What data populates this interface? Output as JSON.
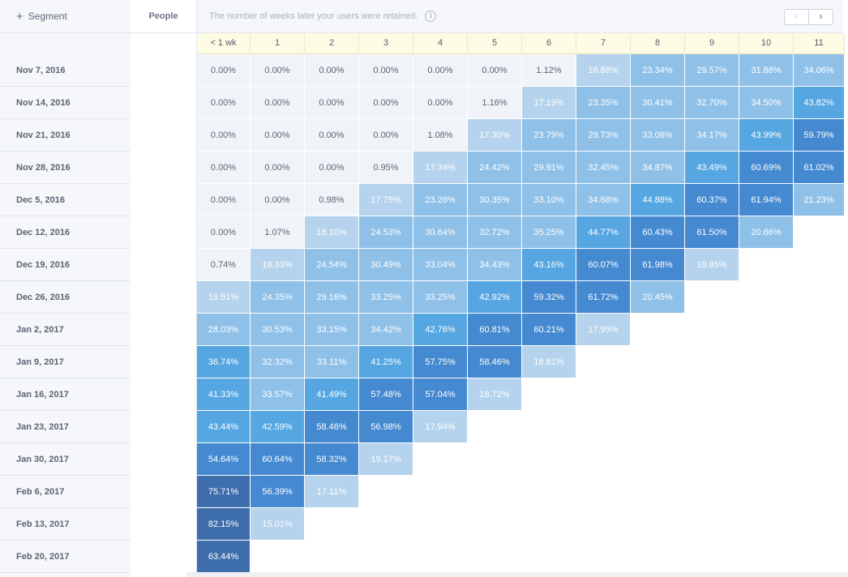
{
  "segment_button": {
    "plus": "+",
    "label": "Segment"
  },
  "people_header": "People",
  "retention_note": "The number of weeks later your users were retained.",
  "info_glyph": "i",
  "pager": {
    "prev": "‹",
    "next": "›"
  },
  "columns": [
    "< 1 wk",
    "1",
    "2",
    "3",
    "4",
    "5",
    "6",
    "7",
    "8",
    "9",
    "10",
    "11"
  ],
  "rows": [
    {
      "date": "Nov 7, 2016",
      "values": [
        "0.00%",
        "0.00%",
        "0.00%",
        "0.00%",
        "0.00%",
        "0.00%",
        "1.12%",
        "16.88%",
        "23.34%",
        "29.57%",
        "31.88%",
        "34.06%"
      ]
    },
    {
      "date": "Nov 14, 2016",
      "values": [
        "0.00%",
        "0.00%",
        "0.00%",
        "0.00%",
        "0.00%",
        "1.16%",
        "17.19%",
        "23.35%",
        "30.41%",
        "32.70%",
        "34.50%",
        "43.82%"
      ]
    },
    {
      "date": "Nov 21, 2016",
      "values": [
        "0.00%",
        "0.00%",
        "0.00%",
        "0.00%",
        "1.08%",
        "17.30%",
        "23.79%",
        "29.73%",
        "33.06%",
        "34.17%",
        "43.99%",
        "59.79%"
      ]
    },
    {
      "date": "Nov 28, 2016",
      "values": [
        "0.00%",
        "0.00%",
        "0.00%",
        "0.95%",
        "17.34%",
        "24.42%",
        "29.91%",
        "32.45%",
        "34.87%",
        "43.49%",
        "60.69%",
        "61.02%"
      ]
    },
    {
      "date": "Dec 5, 2016",
      "values": [
        "0.00%",
        "0.00%",
        "0.98%",
        "17.75%",
        "23.26%",
        "30.35%",
        "33.10%",
        "34.68%",
        "44.88%",
        "60.37%",
        "61.94%",
        "21.23%"
      ]
    },
    {
      "date": "Dec 12, 2016",
      "values": [
        "0.00%",
        "1.07%",
        "18.10%",
        "24.53%",
        "30.64%",
        "32.72%",
        "35.25%",
        "44.77%",
        "60.43%",
        "61.50%",
        "20.86%"
      ]
    },
    {
      "date": "Dec 19, 2016",
      "values": [
        "0.74%",
        "18.33%",
        "24.54%",
        "30.49%",
        "33.04%",
        "34.43%",
        "43.16%",
        "60.07%",
        "61.98%",
        "19.85%"
      ]
    },
    {
      "date": "Dec 26, 2016",
      "values": [
        "19.51%",
        "24.35%",
        "29.16%",
        "33.25%",
        "33.25%",
        "42.92%",
        "59.32%",
        "61.72%",
        "20.45%"
      ]
    },
    {
      "date": "Jan 2, 2017",
      "values": [
        "28.03%",
        "30.53%",
        "33.15%",
        "34.42%",
        "42.76%",
        "60.81%",
        "60.21%",
        "17.95%"
      ]
    },
    {
      "date": "Jan 9, 2017",
      "values": [
        "36.74%",
        "32.32%",
        "33.11%",
        "41.25%",
        "57.75%",
        "58.46%",
        "18.81%"
      ]
    },
    {
      "date": "Jan 16, 2017",
      "values": [
        "41.33%",
        "33.57%",
        "41.49%",
        "57.48%",
        "57.04%",
        "18.72%"
      ]
    },
    {
      "date": "Jan 23, 2017",
      "values": [
        "43.44%",
        "42.59%",
        "58.46%",
        "56.98%",
        "17.94%"
      ]
    },
    {
      "date": "Jan 30, 2017",
      "values": [
        "54.64%",
        "60.64%",
        "58.32%",
        "19.17%"
      ]
    },
    {
      "date": "Feb 6, 2017",
      "values": [
        "75.71%",
        "56.39%",
        "17.11%"
      ]
    },
    {
      "date": "Feb 13, 2017",
      "values": [
        "82.15%",
        "15.01%"
      ]
    },
    {
      "date": "Feb 20, 2017",
      "values": [
        "63.44%"
      ]
    }
  ],
  "colors": {
    "level_0": "#f0f4f9",
    "level_1": "#b5d3ec",
    "level_2": "#8fc0e8",
    "level_3": "#55a6e1",
    "level_4": "#4589d0",
    "level_5": "#3e6eac",
    "text_light": "#ffffff",
    "text_dark": "#5a6573"
  }
}
